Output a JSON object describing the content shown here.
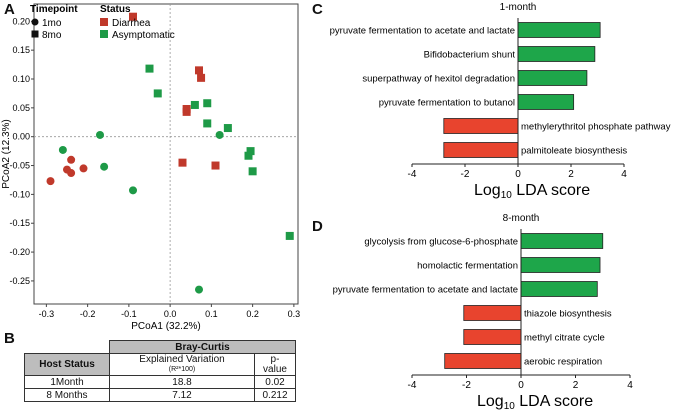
{
  "panels": {
    "a": "A",
    "b": "B",
    "c": "C",
    "d": "D"
  },
  "legend": {
    "timepoint_title": "Timepoint",
    "timepoints": [
      {
        "label": "1mo",
        "marker": "circle"
      },
      {
        "label": "8mo",
        "marker": "square"
      }
    ],
    "status_title": "Status",
    "statuses": [
      {
        "label": "Diarrhea",
        "color": "#c0392b"
      },
      {
        "label": "Asymptomatic",
        "color": "#1e9a47"
      }
    ]
  },
  "colors": {
    "diarrhea": "#c0392b",
    "asymptomatic": "#1e9a47",
    "bar_green": "#1ea64a",
    "bar_red": "#e8442e"
  },
  "chart_data": [
    {
      "type": "scatter",
      "xlabel": "PCoA1 (32.2%)",
      "ylabel": "PCoA2 (12.3%)",
      "xlim": [
        -0.33,
        0.31
      ],
      "ylim": [
        -0.29,
        0.23
      ],
      "xticks": [
        "-0.3",
        "-0.2",
        "-0.1",
        "0.0",
        "0.1",
        "0.2",
        "0.3"
      ],
      "yticks": [
        "0.20",
        "0.15",
        "0.10",
        "0.05",
        "0.00",
        "-0.05",
        "-0.10",
        "-0.15",
        "-0.20",
        "-0.25"
      ],
      "series": [
        {
          "name": "Diarrhea 1mo",
          "points": [
            [
              -0.29,
              -0.077
            ],
            [
              -0.25,
              -0.057
            ],
            [
              -0.24,
              -0.04
            ],
            [
              -0.24,
              -0.063
            ],
            [
              -0.21,
              -0.055
            ]
          ]
        },
        {
          "name": "Diarrhea 8mo",
          "points": [
            [
              -0.09,
              0.208
            ],
            [
              0.07,
              0.115
            ],
            [
              0.075,
              0.102
            ],
            [
              0.04,
              0.048
            ],
            [
              0.04,
              0.043
            ],
            [
              0.03,
              -0.045
            ],
            [
              0.11,
              -0.05
            ]
          ]
        },
        {
          "name": "Asymptomatic 1mo",
          "points": [
            [
              -0.26,
              -0.023
            ],
            [
              -0.17,
              0.003
            ],
            [
              -0.16,
              -0.052
            ],
            [
              -0.09,
              -0.093
            ],
            [
              0.12,
              0.003
            ],
            [
              0.07,
              -0.265
            ]
          ]
        },
        {
          "name": "Asymptomatic 8mo",
          "points": [
            [
              -0.05,
              0.118
            ],
            [
              -0.03,
              0.075
            ],
            [
              0.06,
              0.055
            ],
            [
              0.09,
              0.058
            ],
            [
              0.09,
              0.023
            ],
            [
              0.14,
              0.015
            ],
            [
              0.19,
              -0.033
            ],
            [
              0.195,
              -0.025
            ],
            [
              0.2,
              -0.06
            ],
            [
              0.29,
              -0.172
            ]
          ]
        }
      ]
    },
    {
      "type": "table",
      "title": "Bray-Curtis",
      "columns": [
        "Host Status",
        "Explained Variation",
        "(R²*100)",
        "p-",
        "value"
      ],
      "rows": [
        [
          "1Month",
          "18.8",
          "0.02"
        ],
        [
          "8 Months",
          "7.12",
          "0.212"
        ]
      ]
    },
    {
      "type": "bar",
      "orientation": "horizontal",
      "title": "1-month",
      "xlabel_main": "Log",
      "xlabel_sub": "10",
      "xlabel_rest": " LDA score",
      "xlim": [
        -4,
        4
      ],
      "xticks": [
        "-4",
        "-2",
        "0",
        "2",
        "4"
      ],
      "categories": [
        "pyruvate fermentation to acetate and lactate",
        "Bifidobacterium shunt",
        "superpathway of hexitol degradation",
        "pyruvate fermentation to butanol",
        "methylerythritol phosphate pathway",
        "palmitoleate biosynthesis"
      ],
      "values": [
        3.1,
        2.9,
        2.6,
        2.1,
        -2.8,
        -2.8
      ]
    },
    {
      "type": "bar",
      "orientation": "horizontal",
      "title": "8-month",
      "xlabel_main": "Log",
      "xlabel_sub": "10",
      "xlabel_rest": " LDA score",
      "xlim": [
        -4,
        4
      ],
      "xticks": [
        "-4",
        "-2",
        "0",
        "2",
        "4"
      ],
      "categories": [
        "glycolysis from glucose-6-phosphate",
        "homolactic fermentation",
        "pyruvate fermentation to acetate and lactate",
        "thiazole biosynthesis",
        "methyl citrate cycle",
        "aerobic respiration"
      ],
      "values": [
        3.0,
        2.9,
        2.8,
        -2.1,
        -2.1,
        -2.8
      ]
    }
  ]
}
